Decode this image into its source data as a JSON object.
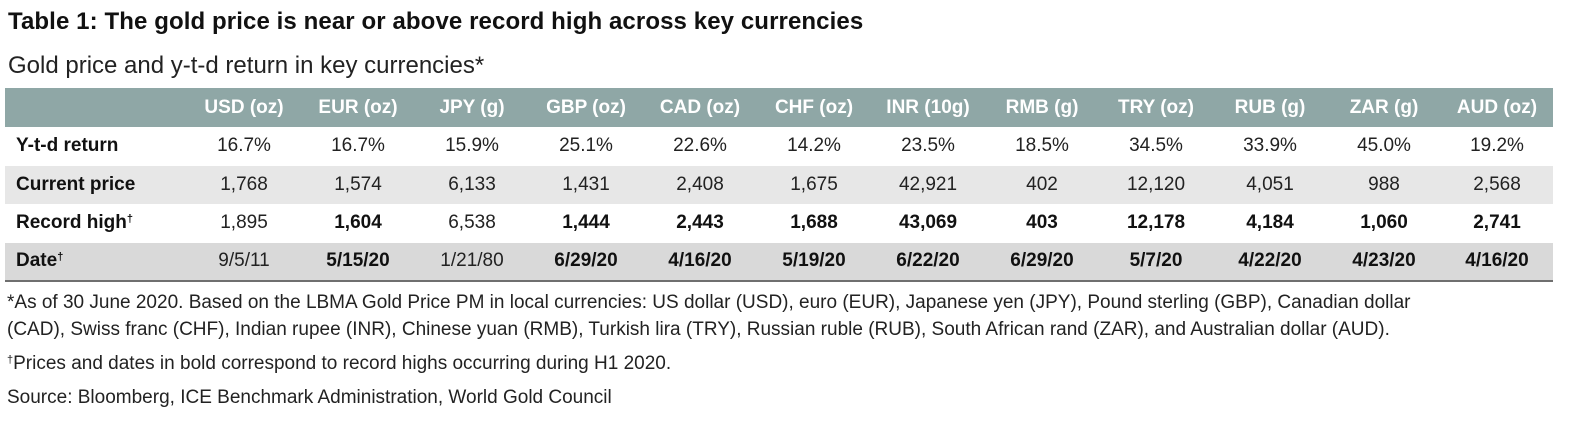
{
  "title": "Table 1: The gold price is near or above record high across key currencies",
  "subtitle": "Gold price and y-t-d return in key currencies*",
  "colors": {
    "header_bg": "#8fa7a6",
    "row_shade": "#e7e7e7",
    "last_row_shade": "#d9d9d9"
  },
  "chart_data": {
    "type": "table",
    "columns": [
      "",
      "USD (oz)",
      "EUR (oz)",
      "JPY (g)",
      "GBP (oz)",
      "CAD (oz)",
      "CHF (oz)",
      "INR (10g)",
      "RMB (g)",
      "TRY (oz)",
      "RUB (g)",
      "ZAR (g)",
      "AUD (oz)"
    ],
    "rows": [
      {
        "label": "Y-t-d return",
        "label_mark": "",
        "shaded": false,
        "cells": [
          {
            "v": "16.7%",
            "b": false
          },
          {
            "v": "16.7%",
            "b": false
          },
          {
            "v": "15.9%",
            "b": false
          },
          {
            "v": "25.1%",
            "b": false
          },
          {
            "v": "22.6%",
            "b": false
          },
          {
            "v": "14.2%",
            "b": false
          },
          {
            "v": "23.5%",
            "b": false
          },
          {
            "v": "18.5%",
            "b": false
          },
          {
            "v": "34.5%",
            "b": false
          },
          {
            "v": "33.9%",
            "b": false
          },
          {
            "v": "45.0%",
            "b": false
          },
          {
            "v": "19.2%",
            "b": false
          }
        ]
      },
      {
        "label": "Current price",
        "label_mark": "",
        "shaded": true,
        "cells": [
          {
            "v": "1,768",
            "b": false
          },
          {
            "v": "1,574",
            "b": false
          },
          {
            "v": "6,133",
            "b": false
          },
          {
            "v": "1,431",
            "b": false
          },
          {
            "v": "2,408",
            "b": false
          },
          {
            "v": "1,675",
            "b": false
          },
          {
            "v": "42,921",
            "b": false
          },
          {
            "v": "402",
            "b": false
          },
          {
            "v": "12,120",
            "b": false
          },
          {
            "v": "4,051",
            "b": false
          },
          {
            "v": "988",
            "b": false
          },
          {
            "v": "2,568",
            "b": false
          }
        ]
      },
      {
        "label": "Record high",
        "label_mark": "†",
        "shaded": false,
        "cells": [
          {
            "v": "1,895",
            "b": false
          },
          {
            "v": "1,604",
            "b": true
          },
          {
            "v": "6,538",
            "b": false
          },
          {
            "v": "1,444",
            "b": true
          },
          {
            "v": "2,443",
            "b": true
          },
          {
            "v": "1,688",
            "b": true
          },
          {
            "v": "43,069",
            "b": true
          },
          {
            "v": "403",
            "b": true
          },
          {
            "v": "12,178",
            "b": true
          },
          {
            "v": "4,184",
            "b": true
          },
          {
            "v": "1,060",
            "b": true
          },
          {
            "v": "2,741",
            "b": true
          }
        ]
      },
      {
        "label": "Date",
        "label_mark": "†",
        "shaded": true,
        "cells": [
          {
            "v": "9/5/11",
            "b": false
          },
          {
            "v": "5/15/20",
            "b": true
          },
          {
            "v": "1/21/80",
            "b": false
          },
          {
            "v": "6/29/20",
            "b": true
          },
          {
            "v": "4/16/20",
            "b": true
          },
          {
            "v": "5/19/20",
            "b": true
          },
          {
            "v": "6/22/20",
            "b": true
          },
          {
            "v": "6/29/20",
            "b": true
          },
          {
            "v": "5/7/20",
            "b": true
          },
          {
            "v": "4/22/20",
            "b": true
          },
          {
            "v": "4/23/20",
            "b": true
          },
          {
            "v": "4/16/20",
            "b": true
          }
        ]
      }
    ]
  },
  "footnotes": {
    "line1": "*As of 30 June 2020. Based on the LBMA Gold Price PM in local currencies: US dollar (USD), euro (EUR), Japanese yen (JPY), Pound sterling (GBP), Canadian dollar",
    "line2": "(CAD), Swiss franc (CHF), Indian rupee (INR), Chinese yuan (RMB), Turkish lira (TRY), Russian ruble (RUB), South African rand (ZAR), and Australian dollar (AUD).",
    "dagger_mark": "†",
    "dagger_text": "Prices and dates in bold correspond to record highs occurring during H1 2020.",
    "source": "Source: Bloomberg, ICE Benchmark Administration, World Gold Council"
  }
}
